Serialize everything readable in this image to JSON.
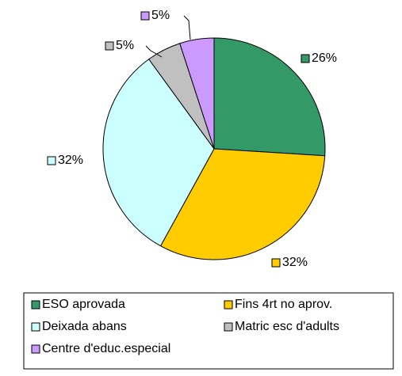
{
  "chart_data": {
    "type": "pie",
    "categories": [
      "ESO aprovada",
      "Fins 4rt no aprov.",
      "Deixada abans",
      "Matric esc d'adults",
      "Centre d'educ.especial"
    ],
    "values": [
      26,
      32,
      32,
      5,
      5
    ],
    "value_labels": [
      "26%",
      "32%",
      "32%",
      "5%",
      "5%"
    ],
    "colors": [
      "#339966",
      "#ffcc00",
      "#ccffff",
      "#c0c0c0",
      "#cc99ff"
    ]
  }
}
